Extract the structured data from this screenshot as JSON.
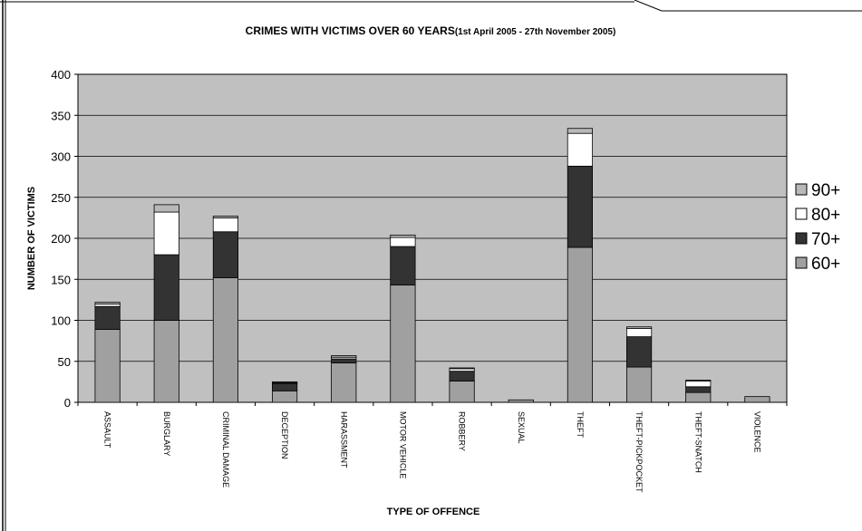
{
  "chart_data": {
    "type": "bar",
    "stacked": true,
    "title": "CRIMES WITH VICTIMS OVER 60 YEARS",
    "subtitle": "(1st April 2005 - 27th November 2005)",
    "xlabel": "TYPE OF OFFENCE",
    "ylabel": "NUMBER OF VICTIMS",
    "ylim": [
      0,
      400
    ],
    "yticks": [
      0,
      50,
      100,
      150,
      200,
      250,
      300,
      350,
      400
    ],
    "grid": true,
    "legend_position": "right",
    "categories": [
      "ASSAULT",
      "BURGLARY",
      "CRIMINAL DAMAGE",
      "DECEPTION",
      "HARASSMENT",
      "MOTOR VEHICLE",
      "ROBBERY",
      "SEXUAL",
      "THEFT",
      "THEFT-PICKPOCKET",
      "THEFT-SNATCH",
      "VIOLENCE"
    ],
    "series": [
      {
        "name": "60+",
        "color": "#a0a0a0",
        "values": [
          89,
          100,
          152,
          14,
          48,
          143,
          26,
          3,
          189,
          43,
          12,
          7
        ]
      },
      {
        "name": "70+",
        "color": "#333333",
        "values": [
          28,
          80,
          56,
          9,
          5,
          47,
          12,
          0,
          99,
          37,
          7,
          0
        ]
      },
      {
        "name": "80+",
        "color": "#ffffff",
        "values": [
          3,
          52,
          17,
          1,
          2,
          11,
          3,
          0,
          40,
          10,
          7,
          0
        ]
      },
      {
        "name": "90+",
        "color": "#b8b8b8",
        "values": [
          2,
          9,
          2,
          1,
          2,
          3,
          1,
          0,
          6,
          2,
          1,
          0
        ]
      }
    ],
    "legend_order": [
      "90+",
      "80+",
      "70+",
      "60+"
    ]
  }
}
